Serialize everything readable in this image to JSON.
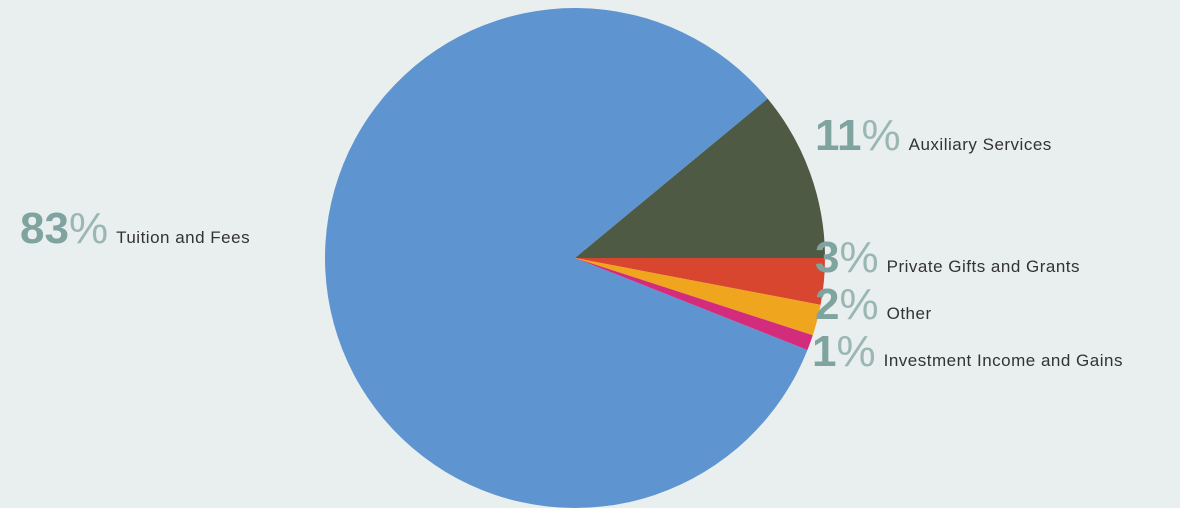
{
  "chart_data": {
    "type": "pie",
    "categories": [
      "Tuition and Fees",
      "Auxiliary Services",
      "Private Gifts and Grants",
      "Other",
      "Investment Income and Gains"
    ],
    "values": [
      83,
      11,
      3,
      2,
      1
    ],
    "unit": "%",
    "colors": [
      "#5e95d0",
      "#4f5a45",
      "#d8462f",
      "#efa51d",
      "#d42c7c"
    ]
  }
}
